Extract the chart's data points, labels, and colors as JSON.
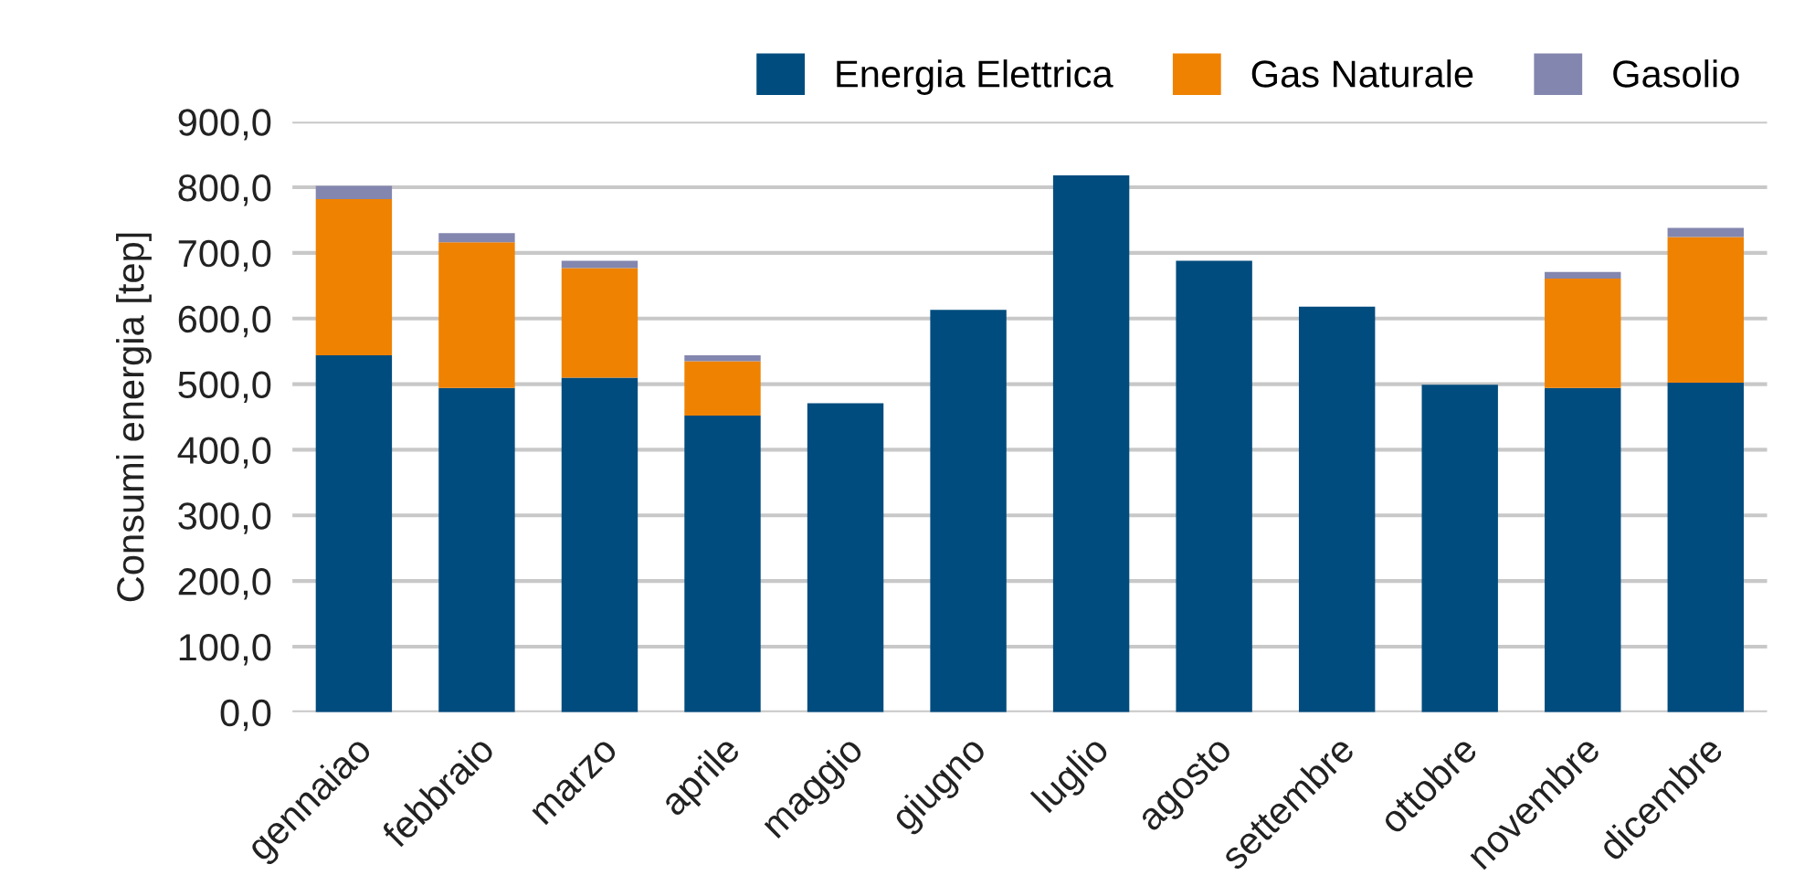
{
  "chart_data": {
    "type": "bar",
    "stacked": true,
    "ylabel": "Consumi energia [tep]",
    "categories": [
      "gennaiao",
      "febbraio",
      "marzo",
      "aprile",
      "maggio",
      "giugno",
      "luglio",
      "agosto",
      "settembre",
      "ottobre",
      "novembre",
      "dicembre"
    ],
    "series": [
      {
        "name": "Energia Elettrica",
        "color": "#004c7e",
        "values": [
          544,
          494,
          510,
          452,
          471,
          613,
          818,
          688,
          618,
          499,
          494,
          502
        ]
      },
      {
        "name": "Gas Naturale",
        "color": "#ef8200",
        "values": [
          238,
          222,
          167,
          83,
          0,
          0,
          0,
          0,
          0,
          0,
          167,
          222
        ]
      },
      {
        "name": "Gasolio",
        "color": "#8386ae",
        "values": [
          20,
          14,
          11,
          9,
          0,
          0,
          0,
          0,
          0,
          0,
          10,
          14
        ]
      }
    ],
    "ylim": [
      0,
      900
    ],
    "yticks": [
      {
        "value": 0,
        "label": "0,0"
      },
      {
        "value": 100,
        "label": "100,0"
      },
      {
        "value": 200,
        "label": "200,0"
      },
      {
        "value": 300,
        "label": "300,0"
      },
      {
        "value": 400,
        "label": "400,0"
      },
      {
        "value": 500,
        "label": "500,0"
      },
      {
        "value": 600,
        "label": "600,0"
      },
      {
        "value": 700,
        "label": "700,0"
      },
      {
        "value": 800,
        "label": "800,0"
      },
      {
        "value": 900,
        "label": "900,0"
      }
    ],
    "grid": "y",
    "legend": "top right"
  }
}
